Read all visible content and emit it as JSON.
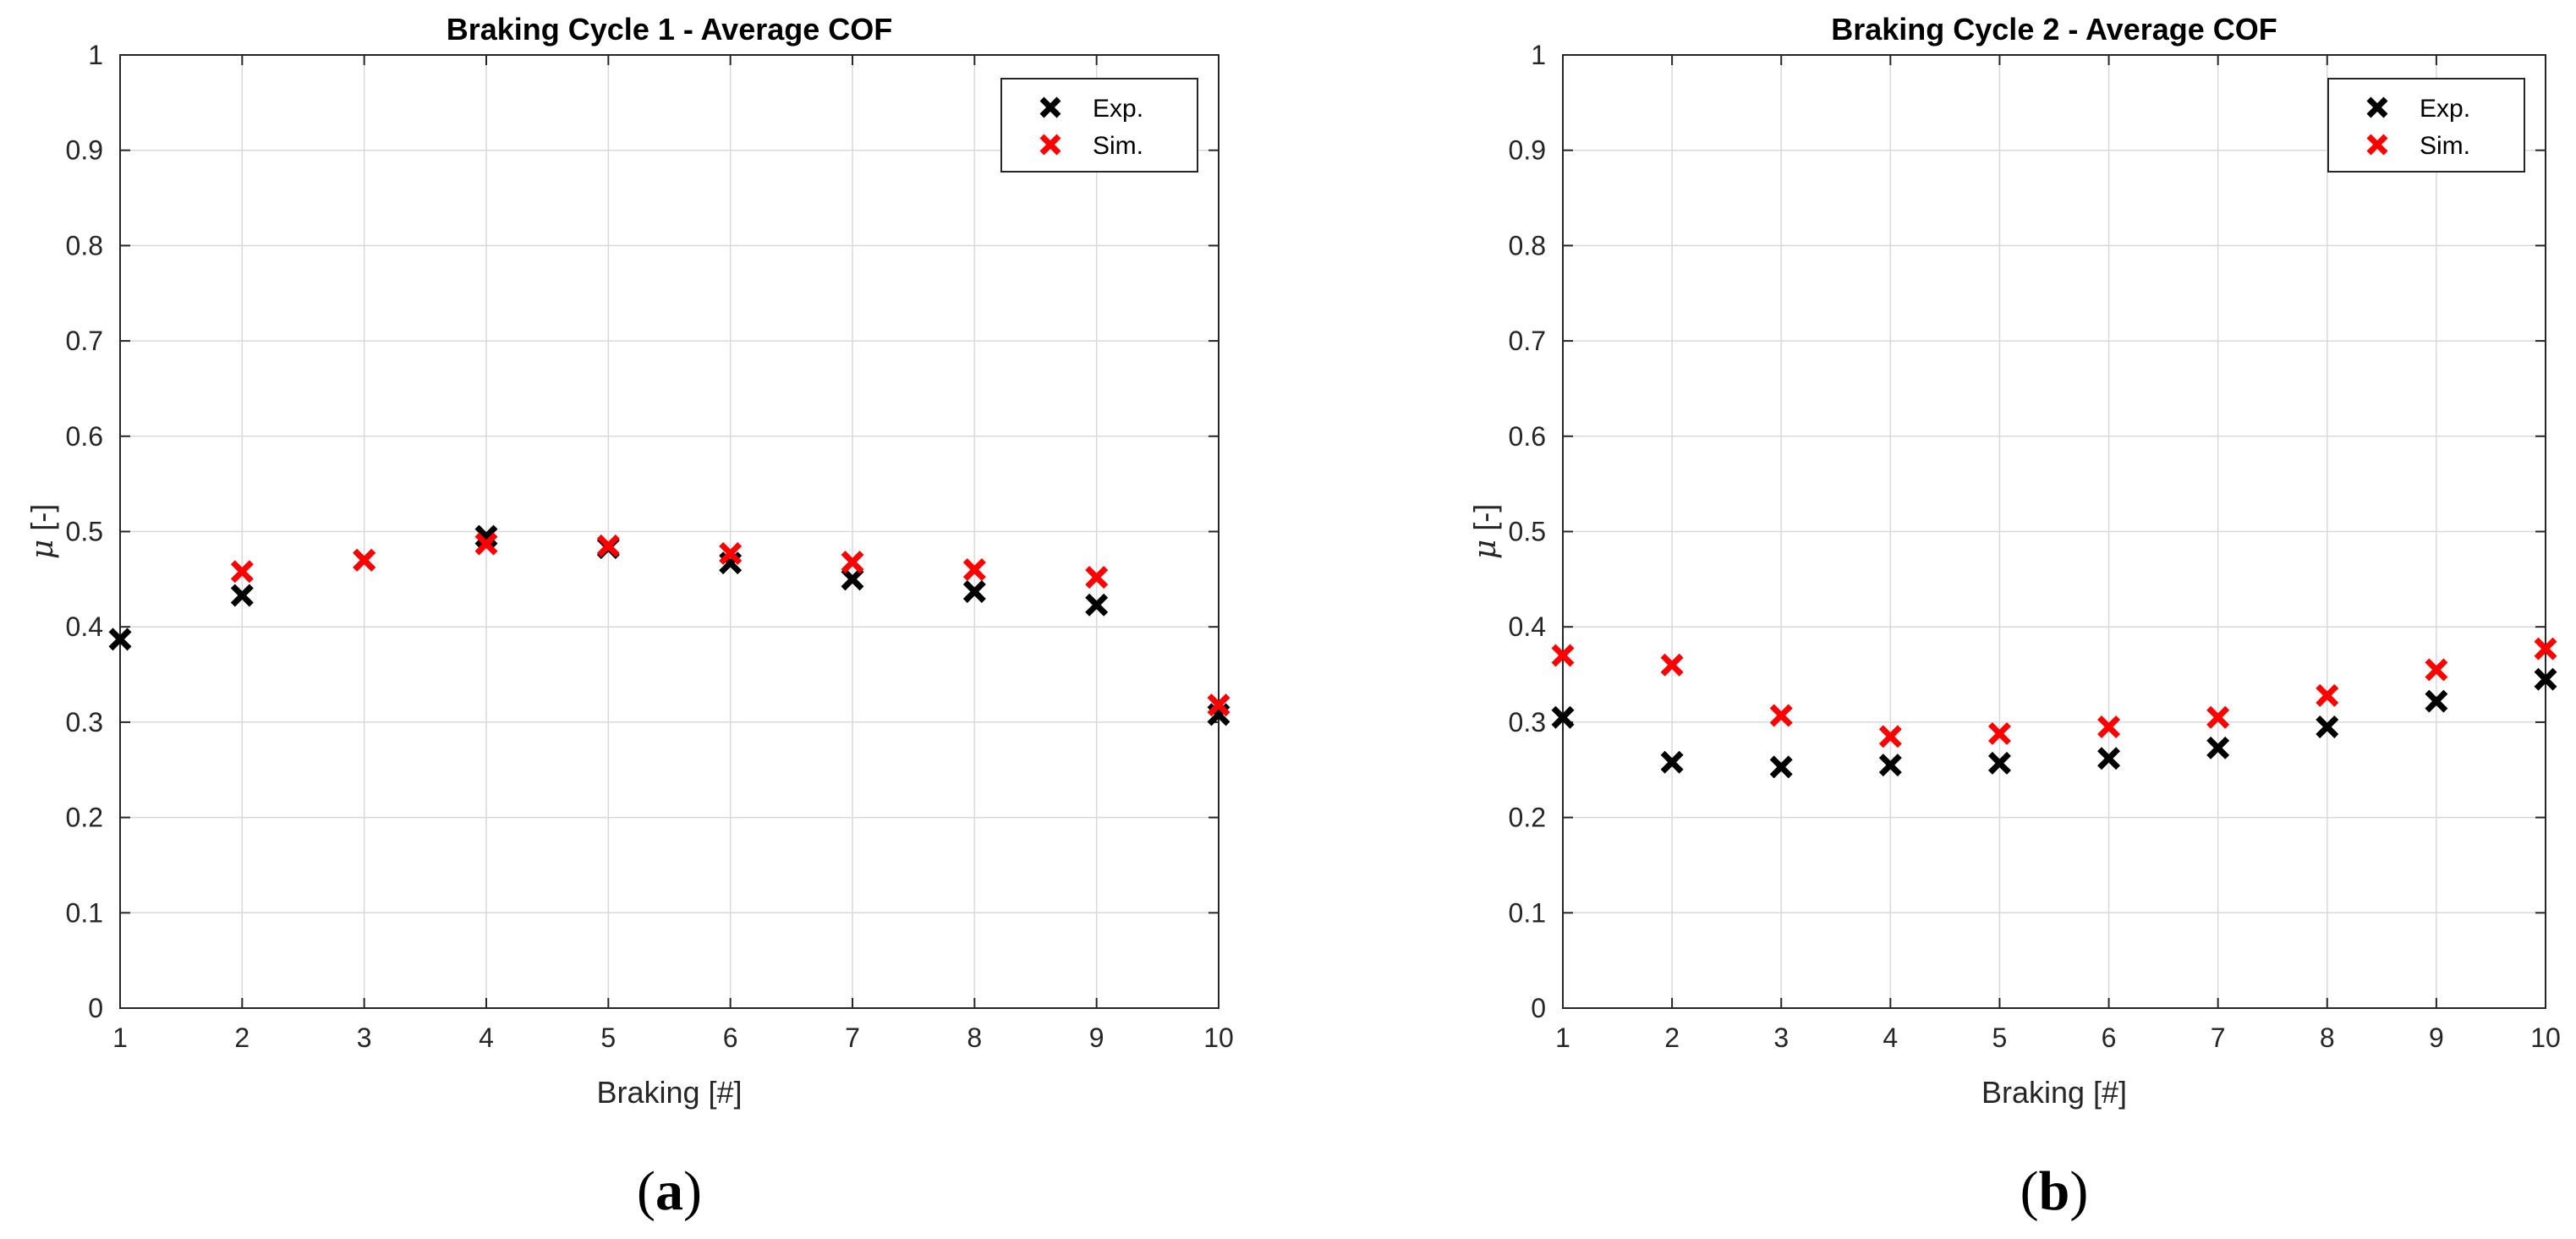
{
  "chart_data": [
    {
      "type": "scatter",
      "title": "Braking Cycle 1 - Average COF",
      "xlabel": "Braking [#]",
      "ylabel_symbol": "μ",
      "ylabel_unit": "[-]",
      "xlim": [
        1,
        10
      ],
      "ylim": [
        0,
        1
      ],
      "xticks": [
        "1",
        "2",
        "3",
        "4",
        "5",
        "6",
        "7",
        "8",
        "9",
        "10"
      ],
      "yticks": [
        "0",
        "0.1",
        "0.2",
        "0.3",
        "0.4",
        "0.5",
        "0.6",
        "0.7",
        "0.8",
        "0.9",
        "1"
      ],
      "grid": true,
      "legend_position": "top-right",
      "caption": "(a)",
      "series": [
        {
          "name": "Exp.",
          "color": "#000000",
          "x": [
            1,
            2,
            3,
            4,
            5,
            6,
            7,
            8,
            9,
            10
          ],
          "y": [
            0.387,
            0.433,
            0.47,
            0.495,
            0.483,
            0.467,
            0.45,
            0.437,
            0.423,
            0.308
          ]
        },
        {
          "name": "Sim.",
          "color": "#ff0000",
          "x": [
            2,
            3,
            4,
            5,
            6,
            7,
            8,
            9,
            10
          ],
          "y": [
            0.458,
            0.47,
            0.487,
            0.485,
            0.477,
            0.468,
            0.46,
            0.452,
            0.318
          ]
        }
      ]
    },
    {
      "type": "scatter",
      "title": "Braking Cycle 2 - Average COF",
      "xlabel": "Braking [#]",
      "ylabel_symbol": "μ",
      "ylabel_unit": "[-]",
      "xlim": [
        1,
        10
      ],
      "ylim": [
        0,
        1
      ],
      "xticks": [
        "1",
        "2",
        "3",
        "4",
        "5",
        "6",
        "7",
        "8",
        "9",
        "10"
      ],
      "yticks": [
        "0",
        "0.1",
        "0.2",
        "0.3",
        "0.4",
        "0.5",
        "0.6",
        "0.7",
        "0.8",
        "0.9",
        "1"
      ],
      "grid": true,
      "legend_position": "top-right",
      "caption": "(b)",
      "series": [
        {
          "name": "Exp.",
          "color": "#000000",
          "x": [
            1,
            2,
            3,
            4,
            5,
            6,
            7,
            8,
            9,
            10
          ],
          "y": [
            0.305,
            0.258,
            0.253,
            0.255,
            0.257,
            0.262,
            0.273,
            0.295,
            0.322,
            0.345
          ]
        },
        {
          "name": "Sim.",
          "color": "#ff0000",
          "x": [
            1,
            2,
            3,
            4,
            5,
            6,
            7,
            8,
            9,
            10
          ],
          "y": [
            0.37,
            0.36,
            0.307,
            0.285,
            0.288,
            0.295,
            0.305,
            0.328,
            0.355,
            0.377
          ]
        }
      ]
    }
  ]
}
